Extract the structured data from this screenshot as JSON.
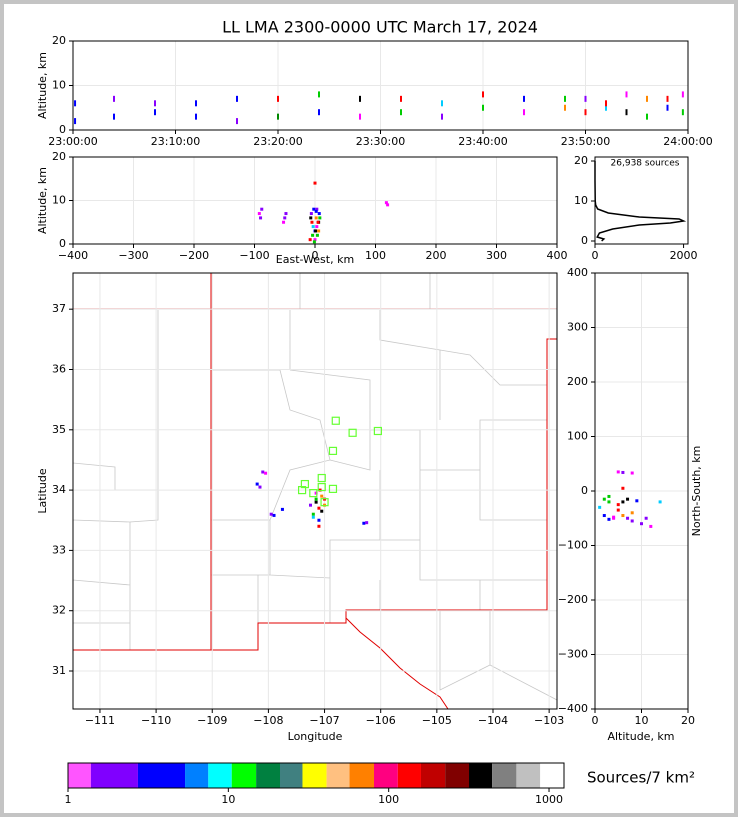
{
  "chart_data": [
    {
      "type": "scatter",
      "title": "LL LMA 2300-0000 UTC March 17, 2024",
      "ylabel": "Altitude, km",
      "x": [
        0.2,
        0.2,
        4,
        4,
        8,
        8,
        12,
        12,
        16,
        16,
        20,
        20,
        24,
        24,
        28,
        28,
        32,
        32,
        36,
        36,
        40,
        40,
        44,
        44,
        48,
        48,
        50,
        50,
        52,
        52,
        54,
        54,
        56,
        56,
        58,
        58,
        59.5,
        59.5
      ],
      "y": [
        2,
        6,
        3,
        7,
        4,
        6,
        3,
        6,
        2,
        7,
        3,
        7,
        4,
        8,
        3,
        7,
        4,
        7,
        3,
        6,
        5,
        8,
        4,
        7,
        5,
        7,
        4,
        7,
        5,
        6,
        4,
        8,
        3,
        7,
        5,
        7,
        4,
        8
      ],
      "colors": [
        "#00f",
        "#00f",
        "#00f",
        "#80f",
        "#00f",
        "#80f",
        "#00f",
        "#00f",
        "#80f",
        "#00f",
        "#080",
        "#f00",
        "#00f",
        "#0c0",
        "#f0f",
        "#000",
        "#0c0",
        "#f00",
        "#80f",
        "#0cf",
        "#0c0",
        "#f00",
        "#f0f",
        "#00f",
        "#f80",
        "#0c0",
        "#f00",
        "#80f",
        "#0cf",
        "#f00",
        "#000",
        "#f0f",
        "#0c0",
        "#f80",
        "#00f",
        "#f00",
        "#0c0",
        "#f0f"
      ],
      "xlim": [
        0,
        60
      ],
      "xticks": [
        {
          "value": 0,
          "label": "23:00:00"
        },
        {
          "value": 10,
          "label": "23:10:00"
        },
        {
          "value": 20,
          "label": "23:20:00"
        },
        {
          "value": 30,
          "label": "23:30:00"
        },
        {
          "value": 40,
          "label": "23:40:00"
        },
        {
          "value": 50,
          "label": "23:50:00"
        },
        {
          "value": 60,
          "label": "24:00:00"
        }
      ],
      "ylim": [
        0,
        20
      ],
      "yticks": [
        0,
        10,
        20
      ],
      "grid": true
    },
    {
      "type": "scatter",
      "xlabel": "East-West, km",
      "ylabel": "Altitude, km",
      "x": [
        -8,
        -4,
        0,
        3,
        6,
        8,
        -6,
        -2,
        2,
        5,
        -3,
        1,
        4,
        7,
        0,
        -5,
        3,
        -90,
        -92,
        -88,
        -52,
        -50,
        -48,
        118,
        120,
        -1,
        2,
        0,
        6,
        -7
      ],
      "y": [
        1,
        2,
        3,
        4,
        5,
        6,
        7,
        8,
        6,
        5,
        4,
        3,
        2,
        7,
        1,
        5,
        8,
        6,
        7,
        8,
        5,
        6,
        7,
        9.5,
        9,
        0.5,
        7.5,
        14,
        3,
        6
      ],
      "colors": [
        "#f00",
        "#0c0",
        "#00f",
        "#f0f",
        "#000",
        "#0c0",
        "#80f",
        "#00f",
        "#f80",
        "#f00",
        "#0cf",
        "#000",
        "#0c0",
        "#00f",
        "#f0f",
        "#f00",
        "#80f",
        "#80f",
        "#f0f",
        "#80f",
        "#f0f",
        "#80f",
        "#80f",
        "#f0f",
        "#f0f",
        "#0c0",
        "#00f",
        "#f00",
        "#f80",
        "#000"
      ],
      "xlim": [
        -400,
        400
      ],
      "xticks": [
        {
          "value": -400,
          "label": "−400"
        },
        {
          "value": -300,
          "label": "−300"
        },
        {
          "value": -200,
          "label": "−200"
        },
        {
          "value": -100,
          "label": "−100"
        },
        0,
        100,
        200,
        300,
        400
      ],
      "ylim": [
        0,
        20
      ],
      "yticks": [
        0,
        10,
        20
      ],
      "grid": true
    },
    {
      "type": "line",
      "annotation": "26,938 sources",
      "color": "#000000",
      "x": [
        150,
        200,
        50,
        100,
        400,
        1000,
        1700,
        2000,
        1900,
        1000,
        300,
        60,
        15,
        5,
        0,
        0
      ],
      "y": [
        0,
        0.5,
        1,
        2,
        3,
        4,
        4.5,
        5,
        5.5,
        6,
        7,
        8,
        9,
        10,
        15,
        20
      ],
      "xlim": [
        0,
        2100
      ],
      "xticks": [
        0,
        2000
      ],
      "ylim": [
        -0.75,
        21
      ],
      "yticks": [
        0,
        10,
        20
      ],
      "grid": false
    },
    {
      "type": "map",
      "xlabel": "Longitude",
      "ylabel": "Latitude",
      "x": [
        -107.1,
        -107.15,
        -107.05,
        -107.2,
        -107.1,
        -107.0,
        -107.25,
        -107.15,
        -107.05,
        -107.1,
        -107.2,
        -107.0,
        -107.15,
        -107.08,
        -108.1,
        -108.05,
        -108.2,
        -108.15,
        -107.9,
        -107.95,
        -107.75,
        -106.3,
        -106.25
      ],
      "y": [
        33.7,
        33.8,
        33.9,
        33.6,
        33.5,
        33.85,
        33.75,
        33.95,
        33.65,
        33.4,
        33.55,
        33.75,
        33.85,
        34.0,
        34.3,
        34.28,
        34.1,
        34.05,
        33.58,
        33.6,
        33.68,
        33.45,
        33.46
      ],
      "colors": [
        "#f00",
        "#000",
        "#f80",
        "#0c0",
        "#00f",
        "#f00",
        "#80f",
        "#f0f",
        "#000",
        "#f00",
        "#0cf",
        "#f80",
        "#0c0",
        "#f00",
        "#80f",
        "#f0f",
        "#00f",
        "#80f",
        "#00f",
        "#80f",
        "#00f",
        "#00f",
        "#80f"
      ],
      "stations": {
        "color": "#66ff33",
        "x": [
          -106.8,
          -106.5,
          -106.05,
          -106.85,
          -107.05,
          -107.35,
          -107.4,
          -107.05,
          -106.85,
          -107.0,
          -107.2
        ],
        "y": [
          35.15,
          34.95,
          34.98,
          34.65,
          34.2,
          34.1,
          34.0,
          34.05,
          34.02,
          33.8,
          33.95
        ]
      },
      "xlim": [
        -111.48,
        -102.86
      ],
      "xticks": [
        {
          "value": -111,
          "label": "−111"
        },
        {
          "value": -110,
          "label": "−110"
        },
        {
          "value": -109,
          "label": "−109"
        },
        {
          "value": -108,
          "label": "−108"
        },
        {
          "value": -107,
          "label": "−107"
        },
        {
          "value": -106,
          "label": "−106"
        },
        {
          "value": -105,
          "label": "−105"
        },
        {
          "value": -104,
          "label": "−104"
        },
        {
          "value": -103,
          "label": "−103"
        }
      ],
      "ylim": [
        30.37,
        37.6
      ],
      "yticks": [
        31,
        32,
        33,
        34,
        35,
        36,
        37
      ],
      "grid": true
    },
    {
      "type": "scatter",
      "xlabel": "Altitude, km",
      "ylabel": "North-South, km",
      "x": [
        3,
        5,
        7,
        2,
        4,
        6,
        8,
        1,
        5,
        3,
        6,
        9,
        4,
        7,
        5,
        6,
        8,
        10,
        12,
        14,
        6,
        2,
        8,
        11,
        3
      ],
      "y": [
        -20,
        -25,
        -15,
        -45,
        -50,
        -45,
        -55,
        -30,
        -35,
        -10,
        -20,
        -18,
        -48,
        -50,
        35,
        34,
        33,
        -60,
        -65,
        -20,
        5,
        -15,
        -40,
        -50,
        -52
      ],
      "colors": [
        "#0c0",
        "#f00",
        "#000",
        "#00f",
        "#f0f",
        "#f80",
        "#80f",
        "#0cf",
        "#f00",
        "#0c0",
        "#000",
        "#00f",
        "#f0f",
        "#80f",
        "#f0f",
        "#80f",
        "#f0f",
        "#80f",
        "#f0f",
        "#0cf",
        "#f00",
        "#0c0",
        "#f80",
        "#80f",
        "#00f"
      ],
      "xlim": [
        0,
        20
      ],
      "xticks": [
        0,
        10,
        20
      ],
      "ylim": [
        -400,
        400
      ],
      "yticks": [
        {
          "value": -400,
          "label": "−400"
        },
        {
          "value": -300,
          "label": "−300"
        },
        {
          "value": -200,
          "label": "−200"
        },
        {
          "value": -100,
          "label": "−100"
        },
        0,
        100,
        200,
        300,
        400
      ],
      "grid": true
    },
    {
      "type": "colorbar",
      "label": "Sources/7 km²",
      "log": true,
      "bins": [
        1,
        1.39,
        2.73,
        5.37,
        7.5,
        10.5,
        14.9,
        21,
        29,
        41,
        57,
        81,
        114,
        159,
        225,
        317,
        442,
        626,
        881,
        1240
      ],
      "colors": [
        "#ff55ff",
        "#8000ff",
        "#0000ff",
        "#0080ff",
        "#00ffff",
        "#00ff00",
        "#008040",
        "#408080",
        "#ffff00",
        "#ffc080",
        "#ff8000",
        "#ff0080",
        "#ff0000",
        "#c00000",
        "#800000",
        "#000000",
        "#808080",
        "#c0c0c0",
        "#ffffff"
      ],
      "xlim": [
        1,
        1240
      ],
      "xticks": [
        1,
        10,
        100,
        1000
      ]
    }
  ]
}
